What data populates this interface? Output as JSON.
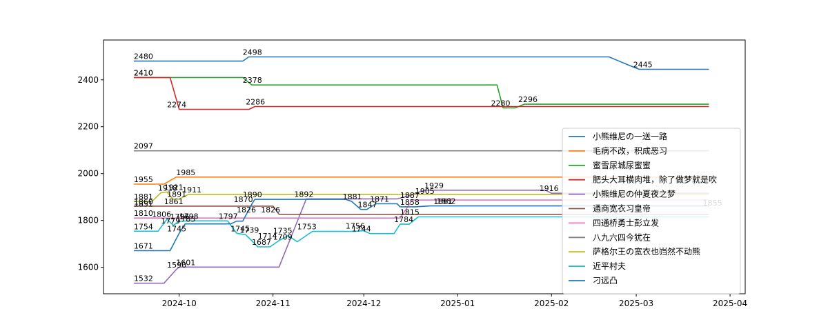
{
  "chart_data": {
    "type": "line",
    "title": "",
    "xlabel": "",
    "ylabel": "",
    "xlim": [
      "2024-09-06",
      "2025-04-06"
    ],
    "ylim": [
      1487,
      2570
    ],
    "x_ticks": [
      "2024-10-01",
      "2024-11-01",
      "2024-12-01",
      "2025-01-01",
      "2025-02-01",
      "2025-03-01",
      "2025-04-01"
    ],
    "x_tick_labels": [
      "2024-10",
      "2024-11",
      "2024-12",
      "2025-01",
      "2025-02",
      "2025-03",
      "2025-04"
    ],
    "y_ticks": [
      1600,
      1800,
      2000,
      2200,
      2400
    ],
    "legend_position": "lower-right",
    "series": [
      {
        "name": "小熊维尼の一送一路",
        "color": "#1f77b4",
        "points": [
          [
            "2024-09-16",
            2480
          ],
          [
            "2024-10-22",
            2480
          ],
          [
            "2024-10-24",
            2498
          ],
          [
            "2025-02-20",
            2498
          ],
          [
            "2025-02-27",
            2460
          ],
          [
            "2025-03-02",
            2445
          ],
          [
            "2025-03-25",
            2445
          ]
        ],
        "labels": [
          [
            "2024-09-16",
            2480,
            "2480"
          ],
          [
            "2024-10-22",
            2498,
            "2498"
          ],
          [
            "2025-02-28",
            2445,
            "2445"
          ]
        ]
      },
      {
        "name": "毛病不改，积成恶习",
        "color": "#ff7f0e",
        "points": [
          [
            "2024-09-16",
            1955
          ],
          [
            "2024-09-26",
            1955
          ],
          [
            "2024-09-30",
            1985
          ],
          [
            "2025-03-25",
            1985
          ]
        ],
        "labels": [
          [
            "2024-09-16",
            1955,
            "1955"
          ],
          [
            "2024-09-30",
            1985,
            "1985"
          ]
        ]
      },
      {
        "name": "蜜雪尿城尿蜜蜜",
        "color": "#2ca02c",
        "points": [
          [
            "2024-09-16",
            2410
          ],
          [
            "2024-10-22",
            2410
          ],
          [
            "2024-10-25",
            2378
          ],
          [
            "2025-01-14",
            2378
          ],
          [
            "2025-01-16",
            2280
          ],
          [
            "2025-01-20",
            2280
          ],
          [
            "2025-01-23",
            2296
          ],
          [
            "2025-03-25",
            2296
          ]
        ],
        "labels": [
          [
            "2024-09-16",
            2410,
            "2410"
          ],
          [
            "2024-10-22",
            2378,
            "2378"
          ],
          [
            "2025-01-12",
            2280,
            "2280"
          ],
          [
            "2025-01-21",
            2296,
            "2296"
          ]
        ]
      },
      {
        "name": "肥头大耳横肉堆，除了做梦就是吹",
        "color": "#d62728",
        "points": [
          [
            "2024-09-16",
            2410
          ],
          [
            "2024-09-28",
            2410
          ],
          [
            "2024-10-01",
            2274
          ],
          [
            "2024-10-24",
            2274
          ],
          [
            "2024-10-26",
            2286
          ],
          [
            "2025-03-25",
            2286
          ]
        ],
        "labels": [
          [
            "2024-09-16",
            2410,
            "2410"
          ],
          [
            "2024-09-27",
            2274,
            "2274"
          ],
          [
            "2024-10-23",
            2286,
            "2286"
          ]
        ]
      },
      {
        "name": "小熊维尼の仲夏夜之梦",
        "color": "#9467bd",
        "points": [
          [
            "2024-09-16",
            1532
          ],
          [
            "2024-09-26",
            1532
          ],
          [
            "2024-09-30",
            1590
          ],
          [
            "2024-10-01",
            1601
          ],
          [
            "2024-11-03",
            1601
          ],
          [
            "2024-11-12",
            1892
          ],
          [
            "2024-12-12",
            1892
          ],
          [
            "2024-12-16",
            1905
          ],
          [
            "2024-12-21",
            1929
          ],
          [
            "2025-01-30",
            1929
          ],
          [
            "2025-02-01",
            1916
          ],
          [
            "2025-03-25",
            1916
          ]
        ],
        "labels": [
          [
            "2024-09-16",
            1532,
            "1532"
          ],
          [
            "2024-09-27",
            1590,
            "1590"
          ],
          [
            "2024-09-30",
            1601,
            "1601"
          ],
          [
            "2024-11-08",
            1892,
            "1892"
          ],
          [
            "2024-12-18",
            1905,
            "1905"
          ],
          [
            "2024-12-21",
            1929,
            "1929"
          ],
          [
            "2025-01-28",
            1916,
            "1916"
          ]
        ]
      },
      {
        "name": "通商宽衣习皇帝",
        "color": "#8c564b",
        "points": [
          [
            "2024-09-16",
            1861
          ],
          [
            "2024-11-01",
            1861
          ],
          [
            "2024-11-03",
            1826
          ],
          [
            "2025-03-25",
            1826
          ]
        ],
        "labels": [
          [
            "2024-09-26",
            1861,
            "1861"
          ],
          [
            "2024-10-28",
            1826,
            "1826"
          ]
        ]
      },
      {
        "name": "四通桥勇士彭立发",
        "color": "#e377c2",
        "points": [
          [
            "2024-09-16",
            1810
          ],
          [
            "2024-12-13",
            1810
          ],
          [
            "2024-12-17",
            1887
          ],
          [
            "2025-03-25",
            1887
          ]
        ],
        "labels": [
          [
            "2024-09-16",
            1810,
            "1810"
          ],
          [
            "2024-12-13",
            1887,
            "1887"
          ]
        ]
      },
      {
        "name": "八九六四今犹在",
        "color": "#7f7f7f",
        "points": [
          [
            "2024-09-16",
            2097
          ],
          [
            "2025-03-25",
            2097
          ]
        ],
        "labels": [
          [
            "2024-09-16",
            2097,
            "2097"
          ]
        ]
      },
      {
        "name": "萨格尔王の宽衣也岿然不动熊",
        "color": "#bcbd22",
        "points": [
          [
            "2024-09-16",
            1881
          ],
          [
            "2024-09-22",
            1881
          ],
          [
            "2024-09-25",
            1918
          ],
          [
            "2024-09-27",
            1921
          ],
          [
            "2024-09-29",
            1891
          ],
          [
            "2024-10-01",
            1891
          ],
          [
            "2024-10-04",
            1911
          ],
          [
            "2025-03-25",
            1911
          ]
        ],
        "labels": [
          [
            "2024-09-16",
            1881,
            "1881"
          ],
          [
            "2024-09-16",
            1860,
            "1860"
          ],
          [
            "2024-09-16",
            1851,
            "1851"
          ],
          [
            "2024-09-24",
            1918,
            "1918"
          ],
          [
            "2024-09-26",
            1921,
            "1921"
          ],
          [
            "2024-09-27",
            1891,
            "1891"
          ],
          [
            "2024-10-02",
            1911,
            "1911"
          ]
        ]
      },
      {
        "name": "近平村夫",
        "color": "#17becf",
        "points": [
          [
            "2024-09-16",
            1754
          ],
          [
            "2024-09-24",
            1754
          ],
          [
            "2024-09-27",
            1806
          ],
          [
            "2024-09-29",
            1779
          ],
          [
            "2024-10-01",
            1796
          ],
          [
            "2024-10-04",
            1798
          ],
          [
            "2024-10-17",
            1798
          ],
          [
            "2024-10-20",
            1745
          ],
          [
            "2024-10-23",
            1739
          ],
          [
            "2024-10-27",
            1687
          ],
          [
            "2024-10-31",
            1687
          ],
          [
            "2024-11-03",
            1714
          ],
          [
            "2024-11-06",
            1735
          ],
          [
            "2024-11-09",
            1709
          ],
          [
            "2024-11-14",
            1753
          ],
          [
            "2024-11-28",
            1753
          ],
          [
            "2024-12-01",
            1756
          ],
          [
            "2024-12-03",
            1744
          ],
          [
            "2024-12-11",
            1744
          ],
          [
            "2024-12-13",
            1784
          ],
          [
            "2024-12-16",
            1784
          ],
          [
            "2024-12-19",
            1815
          ],
          [
            "2025-03-25",
            1815
          ]
        ],
        "labels": [
          [
            "2024-09-16",
            1754,
            "1754"
          ],
          [
            "2024-09-22",
            1806,
            "1806"
          ],
          [
            "2024-09-25",
            1779,
            "1779"
          ],
          [
            "2024-09-28",
            1796,
            "1796"
          ],
          [
            "2024-10-01",
            1798,
            "1798"
          ],
          [
            "2024-10-18",
            1745,
            "1745"
          ],
          [
            "2024-10-21",
            1739,
            "1739"
          ],
          [
            "2024-10-25",
            1687,
            "1687"
          ],
          [
            "2024-10-27",
            1714,
            "1714"
          ],
          [
            "2024-11-01",
            1735,
            "1735"
          ],
          [
            "2024-11-01",
            1709,
            "1709"
          ],
          [
            "2024-11-09",
            1753,
            "1753"
          ],
          [
            "2024-11-25",
            1756,
            "1756"
          ],
          [
            "2024-11-27",
            1744,
            "1744"
          ],
          [
            "2024-12-11",
            1784,
            "1784"
          ],
          [
            "2024-12-13",
            1815,
            "1815"
          ]
        ]
      },
      {
        "name": "刁远凸",
        "color": "#1f77b4",
        "points": [
          [
            "2024-09-16",
            1671
          ],
          [
            "2024-09-28",
            1671
          ],
          [
            "2024-10-01",
            1745
          ],
          [
            "2024-10-03",
            1785
          ],
          [
            "2024-10-18",
            1785
          ],
          [
            "2024-10-20",
            1797
          ],
          [
            "2024-10-22",
            1797
          ],
          [
            "2024-10-25",
            1870
          ],
          [
            "2024-10-26",
            1890
          ],
          [
            "2024-11-25",
            1890
          ],
          [
            "2024-11-27",
            1881
          ],
          [
            "2024-11-30",
            1847
          ],
          [
            "2024-12-02",
            1847
          ],
          [
            "2024-12-05",
            1871
          ],
          [
            "2024-12-12",
            1871
          ],
          [
            "2024-12-13",
            1858
          ],
          [
            "2024-12-18",
            1858
          ],
          [
            "2024-12-23",
            1862
          ],
          [
            "2025-03-25",
            1862
          ]
        ],
        "labels": [
          [
            "2024-09-16",
            1671,
            "1671"
          ],
          [
            "2024-09-27",
            1745,
            "1745"
          ],
          [
            "2024-09-30",
            1785,
            "1785"
          ],
          [
            "2024-10-14",
            1797,
            "1797"
          ],
          [
            "2024-10-20",
            1826,
            "1826"
          ],
          [
            "2024-10-19",
            1870,
            "1870"
          ],
          [
            "2024-10-22",
            1890,
            "1890"
          ],
          [
            "2024-11-24",
            1881,
            "1881"
          ],
          [
            "2024-11-29",
            1847,
            "1847"
          ],
          [
            "2024-12-03",
            1871,
            "1871"
          ],
          [
            "2024-12-13",
            1858,
            "1858"
          ],
          [
            "2024-12-25",
            1862,
            "1862"
          ],
          [
            "2024-12-24",
            1861,
            "1861"
          ],
          [
            "2025-03-23",
            1855,
            "1855"
          ]
        ]
      }
    ]
  }
}
